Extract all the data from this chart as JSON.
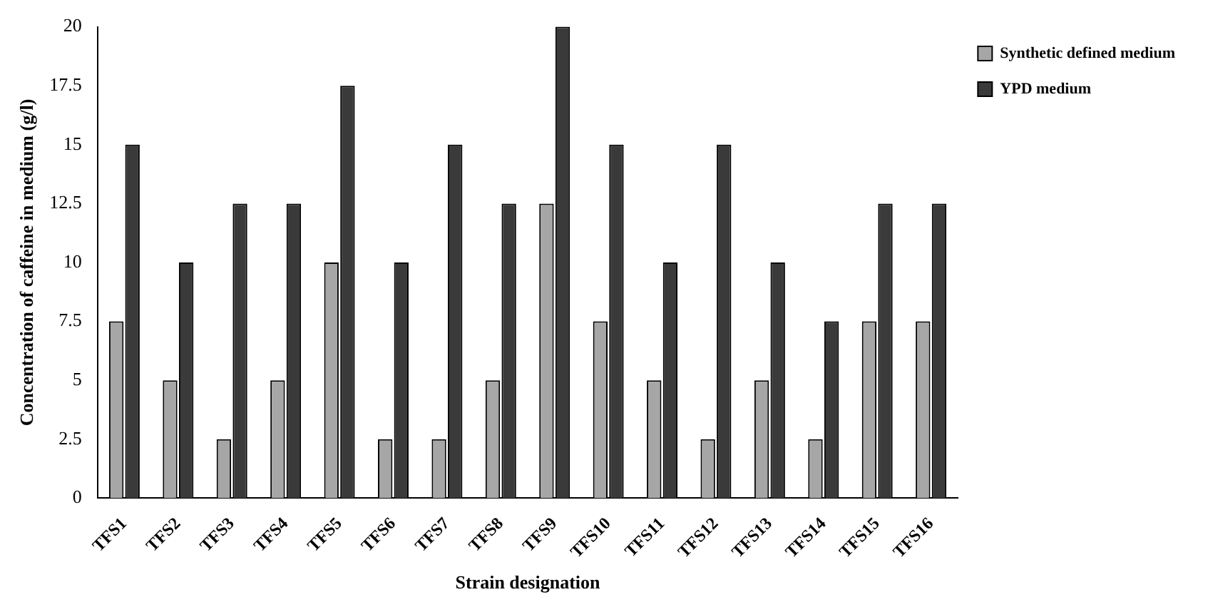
{
  "chart_data": {
    "type": "bar",
    "xlabel": "Strain designation",
    "ylabel": "Concentration of caffeine in medium (g/l)",
    "categories": [
      "TFS1",
      "TFS2",
      "TFS3",
      "TFS4",
      "TFS5",
      "TFS6",
      "TFS7",
      "TFS8",
      "TFS9",
      "TFS10",
      "TFS11",
      "TFS12",
      "TFS13",
      "TFS14",
      "TFS15",
      "TFS16"
    ],
    "series": [
      {
        "name": "Synthetic defined medium",
        "color": "#a6a6a6",
        "values": [
          7.5,
          5,
          2.5,
          5,
          10,
          2.5,
          2.5,
          5,
          12.5,
          7.5,
          5,
          2.5,
          5,
          2.5,
          7.5,
          7.5
        ]
      },
      {
        "name": "YPD medium",
        "color": "#3a3a3a",
        "values": [
          15,
          10,
          12.5,
          12.5,
          17.5,
          10,
          15,
          12.5,
          20,
          15,
          10,
          15,
          10,
          7.5,
          12.5,
          12.5
        ]
      }
    ],
    "ylim": [
      0,
      20
    ],
    "yticks": [
      0,
      2.5,
      5,
      7.5,
      10,
      12.5,
      15,
      17.5,
      20
    ],
    "grid": false,
    "legend": "top right"
  }
}
